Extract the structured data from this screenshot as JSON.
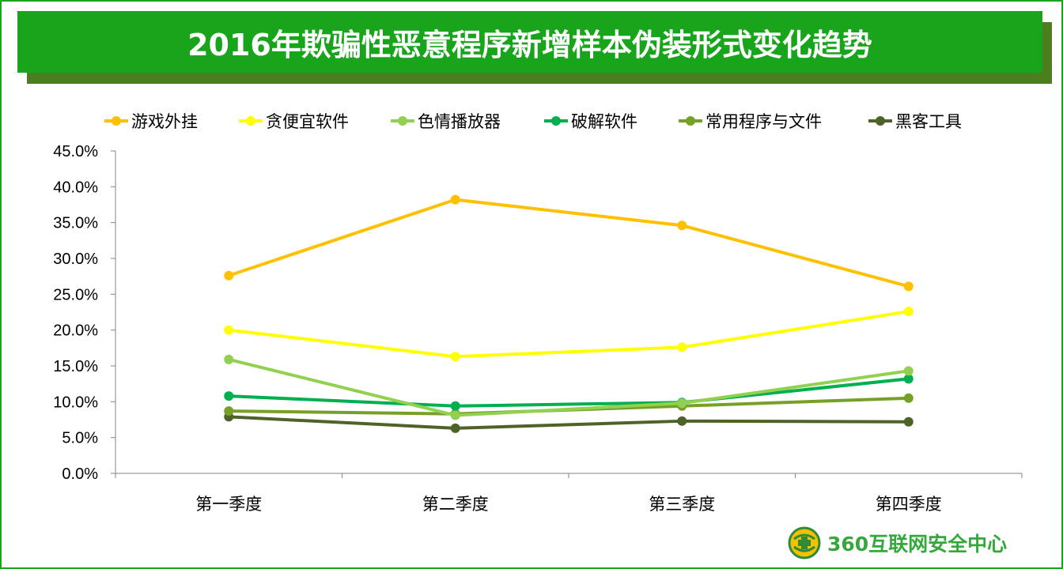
{
  "title": "2016年欺骗性恶意程序新增样本伪装形式变化趋势",
  "logo": {
    "text": "360互联网安全中心",
    "icon": "360-shield-logo-icon"
  },
  "chart_data": {
    "type": "line",
    "title": "2016年欺骗性恶意程序新增样本伪装形式变化趋势",
    "xlabel": "",
    "ylabel": "",
    "categories": [
      "第一季度",
      "第二季度",
      "第三季度",
      "第四季度"
    ],
    "ylim": [
      0,
      45
    ],
    "yticks": [
      0,
      5,
      10,
      15,
      20,
      25,
      30,
      35,
      40,
      45
    ],
    "ytick_labels": [
      "0.0%",
      "5.0%",
      "10.0%",
      "15.0%",
      "20.0%",
      "25.0%",
      "30.0%",
      "35.0%",
      "40.0%",
      "45.0%"
    ],
    "grid": false,
    "legend_position": "top",
    "series": [
      {
        "name": "游戏外挂",
        "color": "#ffc000",
        "values": [
          27.6,
          38.2,
          34.6,
          26.1
        ]
      },
      {
        "name": "贪便宜软件",
        "color": "#ffff00",
        "values": [
          20.0,
          16.3,
          17.6,
          22.6
        ]
      },
      {
        "name": "色情播放器",
        "color": "#92d050",
        "values": [
          15.9,
          8.1,
          9.8,
          14.3
        ]
      },
      {
        "name": "破解软件",
        "color": "#00b050",
        "values": [
          10.8,
          9.4,
          9.9,
          13.2
        ]
      },
      {
        "name": "常用程序与文件",
        "color": "#77a028",
        "values": [
          8.7,
          8.3,
          9.4,
          10.5
        ]
      },
      {
        "name": "黑客工具",
        "color": "#4f6228",
        "values": [
          7.9,
          6.3,
          7.3,
          7.2
        ]
      }
    ]
  }
}
